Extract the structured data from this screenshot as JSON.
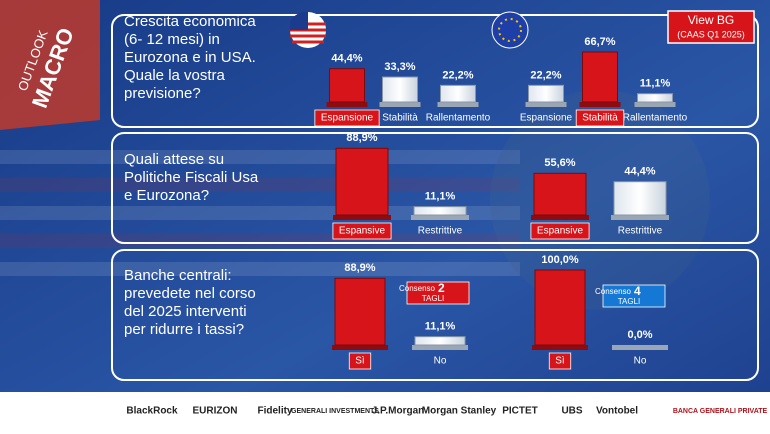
{
  "header": {
    "side_title": [
      "OUTLOOK",
      "MACRO"
    ],
    "button": [
      "View BG",
      "(CAAS Q1 2025)"
    ]
  },
  "questions": [
    [
      "Crescita economica",
      "(6- 12 mesi) in",
      "Eurozona e in USA.",
      "Quale la vostra",
      "previsione?"
    ],
    [
      "Quali attese su",
      "Politiche Fiscali Usa",
      "e Eurozona?"
    ],
    [
      "Banche centrali:",
      "prevedete nel corso",
      "del 2025 interventi",
      "per ridurre i tassi?"
    ]
  ],
  "chart_data": [
    {
      "type": "bar",
      "categories": [
        "Espansione",
        "Stabilità",
        "Rallentamento"
      ],
      "values": [
        44.4,
        33.3,
        22.2
      ],
      "value_labels": [
        "44,4%",
        "33,3%",
        "22,2%"
      ],
      "colors": [
        "#d7141a",
        "#ffffff",
        "#ffffff"
      ]
    },
    {
      "type": "bar",
      "categories": [
        "Espansione",
        "Stabilità",
        "Rallentamento"
      ],
      "values": [
        22.2,
        66.7,
        11.1
      ],
      "value_labels": [
        "22,2%",
        "66,7%",
        "11,1%"
      ],
      "colors": [
        "#ffffff",
        "#d7141a",
        "#ffffff"
      ]
    },
    {
      "type": "bar",
      "categories": [
        "Espansive",
        "Restrittive"
      ],
      "values": [
        88.9,
        11.1
      ],
      "value_labels": [
        "88,9%",
        "11,1%"
      ],
      "colors": [
        "#d7141a",
        "#ffffff"
      ]
    },
    {
      "type": "bar",
      "categories": [
        "Espansive",
        "Restrittive"
      ],
      "values": [
        55.6,
        44.4
      ],
      "value_labels": [
        "55,6%",
        "44,4%"
      ],
      "colors": [
        "#d7141a",
        "#ffffff"
      ]
    },
    {
      "type": "bar",
      "categories": [
        "Sì",
        "No"
      ],
      "values": [
        88.9,
        11.1
      ],
      "value_labels": [
        "88,9%",
        "11,1%"
      ],
      "colors": [
        "#d7141a",
        "#ffffff"
      ],
      "annotation": {
        "label": "Consenso",
        "number": 2,
        "unit": "TAGLI",
        "color": "#d7141a"
      }
    },
    {
      "type": "bar",
      "categories": [
        "Sì",
        "No"
      ],
      "values": [
        100.0,
        0.0
      ],
      "value_labels": [
        "100,0%",
        "0,0%"
      ],
      "colors": [
        "#d7141a",
        "#ffffff"
      ],
      "annotation": {
        "label": "Consenso",
        "number": 4,
        "unit": "TAGLI",
        "color": "#1478d4"
      }
    }
  ],
  "footer": {
    "logos": [
      "BlackRock",
      "EURIZON",
      "Fidelity",
      "GENERALI INVESTMENTS",
      "J.P.Morgan",
      "Morgan Stanley",
      "PICTET",
      "UBS",
      "Vontobel",
      "BANCA GENERALI PRIVATE"
    ]
  }
}
